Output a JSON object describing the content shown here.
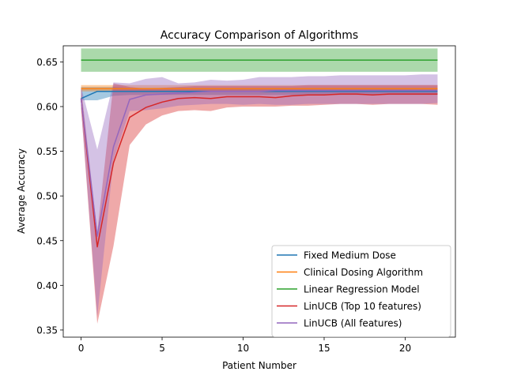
{
  "chart_data": {
    "type": "line",
    "title": "Accuracy Comparison of Algorithms",
    "xlabel": "Patient Number",
    "ylabel": "Average Accuracy",
    "xlim": [
      -1.1,
      23.1
    ],
    "ylim": [
      0.342,
      0.668
    ],
    "xticks": [
      0,
      5,
      10,
      15,
      20
    ],
    "yticks": [
      0.35,
      0.4,
      0.45,
      0.5,
      0.55,
      0.6,
      0.65
    ],
    "ytick_labels": [
      "0.35",
      "0.40",
      "0.45",
      "0.50",
      "0.55",
      "0.60",
      "0.65"
    ],
    "grid": false,
    "legend_position": "lower right",
    "x": [
      0,
      1,
      2,
      3,
      4,
      5,
      6,
      7,
      8,
      9,
      10,
      11,
      12,
      13,
      14,
      15,
      16,
      17,
      18,
      19,
      20,
      21,
      22
    ],
    "series": [
      {
        "name": "Fixed Medium Dose",
        "color": "#1f77b4",
        "values": [
          0.609,
          0.617,
          0.617,
          0.617,
          0.617,
          0.617,
          0.617,
          0.617,
          0.617,
          0.617,
          0.617,
          0.617,
          0.617,
          0.617,
          0.617,
          0.617,
          0.617,
          0.617,
          0.617,
          0.617,
          0.617,
          0.617,
          0.617
        ],
        "lower": [
          0.607,
          0.607,
          0.612,
          0.613,
          0.613,
          0.613,
          0.613,
          0.613,
          0.613,
          0.613,
          0.613,
          0.613,
          0.613,
          0.613,
          0.613,
          0.613,
          0.613,
          0.613,
          0.613,
          0.613,
          0.613,
          0.613,
          0.613
        ],
        "upper": [
          0.622,
          0.622,
          0.622,
          0.621,
          0.621,
          0.621,
          0.621,
          0.621,
          0.621,
          0.621,
          0.621,
          0.621,
          0.621,
          0.621,
          0.621,
          0.621,
          0.621,
          0.621,
          0.621,
          0.621,
          0.621,
          0.621,
          0.621
        ]
      },
      {
        "name": "Clinical Dosing Algorithm",
        "color": "#ff7f0e",
        "values": [
          0.62,
          0.62,
          0.62,
          0.62,
          0.62,
          0.62,
          0.62,
          0.62,
          0.62,
          0.62,
          0.62,
          0.62,
          0.62,
          0.62,
          0.62,
          0.62,
          0.62,
          0.62,
          0.62,
          0.62,
          0.62,
          0.62,
          0.62
        ],
        "lower": [
          0.617,
          0.617,
          0.617,
          0.617,
          0.617,
          0.617,
          0.617,
          0.617,
          0.617,
          0.617,
          0.617,
          0.617,
          0.617,
          0.617,
          0.617,
          0.617,
          0.617,
          0.617,
          0.617,
          0.617,
          0.617,
          0.617,
          0.617
        ],
        "upper": [
          0.624,
          0.624,
          0.624,
          0.624,
          0.624,
          0.624,
          0.624,
          0.624,
          0.624,
          0.624,
          0.624,
          0.624,
          0.624,
          0.624,
          0.624,
          0.624,
          0.624,
          0.624,
          0.624,
          0.624,
          0.624,
          0.624,
          0.624
        ]
      },
      {
        "name": "Linear Regression Model",
        "color": "#2ca02c",
        "values": [
          0.652,
          0.652,
          0.652,
          0.652,
          0.652,
          0.652,
          0.652,
          0.652,
          0.652,
          0.652,
          0.652,
          0.652,
          0.652,
          0.652,
          0.652,
          0.652,
          0.652,
          0.652,
          0.652,
          0.652,
          0.652,
          0.652,
          0.652
        ],
        "lower": [
          0.639,
          0.639,
          0.639,
          0.639,
          0.639,
          0.639,
          0.639,
          0.639,
          0.639,
          0.639,
          0.639,
          0.639,
          0.639,
          0.639,
          0.639,
          0.639,
          0.639,
          0.639,
          0.639,
          0.639,
          0.639,
          0.639,
          0.639
        ],
        "upper": [
          0.665,
          0.665,
          0.665,
          0.665,
          0.665,
          0.665,
          0.665,
          0.665,
          0.665,
          0.665,
          0.665,
          0.665,
          0.665,
          0.665,
          0.665,
          0.665,
          0.665,
          0.665,
          0.665,
          0.665,
          0.665,
          0.665,
          0.665
        ]
      },
      {
        "name": "LinUCB (Top 10 features)",
        "color": "#d62728",
        "values": [
          0.609,
          0.443,
          0.537,
          0.588,
          0.599,
          0.605,
          0.609,
          0.61,
          0.609,
          0.611,
          0.611,
          0.611,
          0.61,
          0.612,
          0.613,
          0.613,
          0.614,
          0.614,
          0.613,
          0.614,
          0.614,
          0.614,
          0.614
        ],
        "lower": [
          0.598,
          0.357,
          0.444,
          0.557,
          0.58,
          0.59,
          0.595,
          0.596,
          0.595,
          0.599,
          0.6,
          0.6,
          0.6,
          0.601,
          0.601,
          0.602,
          0.603,
          0.603,
          0.602,
          0.603,
          0.603,
          0.603,
          0.602
        ],
        "upper": [
          0.622,
          0.459,
          0.626,
          0.622,
          0.62,
          0.621,
          0.622,
          0.623,
          0.623,
          0.623,
          0.623,
          0.623,
          0.623,
          0.623,
          0.624,
          0.624,
          0.624,
          0.624,
          0.624,
          0.624,
          0.624,
          0.624,
          0.624
        ]
      },
      {
        "name": "LinUCB (All features)",
        "color": "#9467bd",
        "values": [
          0.609,
          0.455,
          0.555,
          0.608,
          0.613,
          0.614,
          0.615,
          0.616,
          0.617,
          0.617,
          0.617,
          0.617,
          0.618,
          0.618,
          0.618,
          0.618,
          0.618,
          0.618,
          0.618,
          0.618,
          0.618,
          0.618,
          0.618
        ],
        "lower": [
          0.598,
          0.365,
          0.54,
          0.595,
          0.596,
          0.598,
          0.601,
          0.602,
          0.603,
          0.603,
          0.602,
          0.603,
          0.602,
          0.602,
          0.603,
          0.603,
          0.603,
          0.603,
          0.603,
          0.603,
          0.603,
          0.603,
          0.604
        ],
        "upper": [
          0.622,
          0.552,
          0.627,
          0.626,
          0.631,
          0.633,
          0.626,
          0.627,
          0.63,
          0.629,
          0.63,
          0.633,
          0.633,
          0.633,
          0.634,
          0.634,
          0.635,
          0.635,
          0.635,
          0.635,
          0.635,
          0.636,
          0.636
        ]
      }
    ]
  }
}
